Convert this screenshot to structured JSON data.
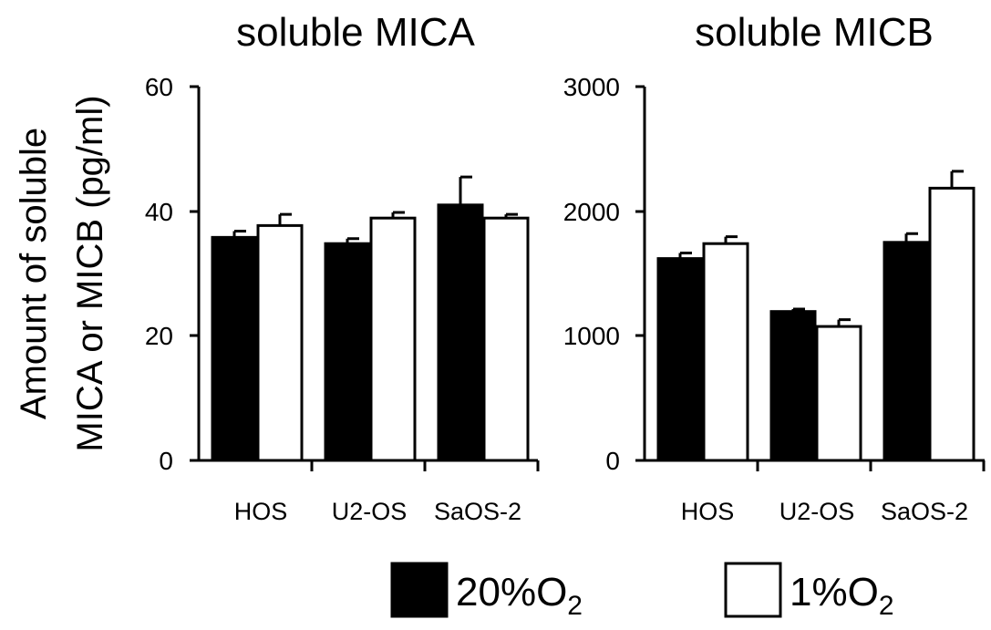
{
  "ylabel_lines": [
    "Amount of soluble",
    "MICA or MICB (pg/ml)"
  ],
  "legend": [
    {
      "base": "20%O",
      "sub": "2",
      "fill": "#000000"
    },
    {
      "base": "1%O",
      "sub": "2",
      "fill": "#ffffff"
    }
  ],
  "chart_data": [
    {
      "type": "bar",
      "title": "soluble MICA",
      "categories": [
        "HOS",
        "U2-OS",
        "SaOS-2"
      ],
      "ylim": [
        0,
        60
      ],
      "yticks": [
        "0",
        "20",
        "40",
        "60"
      ],
      "series": [
        {
          "name": "20%O2",
          "values": [
            35.8,
            34.8,
            41.0
          ],
          "errors": [
            1.0,
            0.8,
            4.5
          ]
        },
        {
          "name": "1%O2",
          "values": [
            37.7,
            38.9,
            38.9
          ],
          "errors": [
            1.8,
            0.9,
            0.6
          ]
        }
      ]
    },
    {
      "type": "bar",
      "title": "soluble MICB",
      "categories": [
        "HOS",
        "U2-OS",
        "SaOS-2"
      ],
      "ylim": [
        0,
        3000
      ],
      "yticks": [
        "0",
        "1000",
        "2000",
        "3000"
      ],
      "series": [
        {
          "name": "20%O2",
          "values": [
            1620,
            1195,
            1750
          ],
          "errors": [
            45,
            20,
            70
          ]
        },
        {
          "name": "1%O2",
          "values": [
            1740,
            1075,
            2185
          ],
          "errors": [
            55,
            55,
            135
          ]
        }
      ]
    }
  ]
}
